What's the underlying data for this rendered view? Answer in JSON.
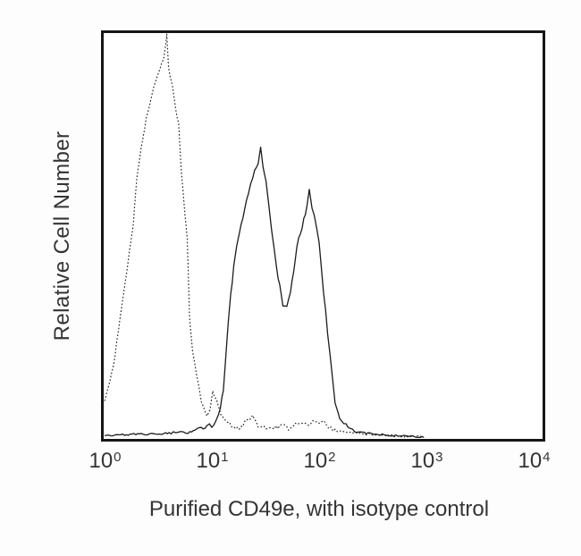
{
  "figure": {
    "background": "#fdfdfd",
    "plot_border_color": "#161616",
    "text_color": "#343434"
  },
  "chart_data": {
    "type": "line",
    "variant": "flow-cytometry-histogram-overlay",
    "title": "",
    "xlabel": "Purified CD49e, with isotype control",
    "ylabel": "Relative Cell Number",
    "x_scale": "log10",
    "x_range": [
      1,
      10000
    ],
    "y_range_percent": [
      0,
      100
    ],
    "y_ticks": "none",
    "grid": false,
    "legend": "none",
    "xticks": [
      {
        "base": "10",
        "exp": "0"
      },
      {
        "base": "10",
        "exp": "1"
      },
      {
        "base": "10",
        "exp": "2"
      },
      {
        "base": "10",
        "exp": "3"
      },
      {
        "base": "10",
        "exp": "4"
      }
    ],
    "series": [
      {
        "name": "Isotype control",
        "line_style": "dotted",
        "color": "#1b1b1b",
        "peak_summary": "single peak at ~3.8 reaching ~100%, low noise tail with bump ~10% near x=10",
        "points_x_value_y_percent": [
          [
            1.0,
            9
          ],
          [
            1.12,
            14
          ],
          [
            1.25,
            20
          ],
          [
            1.4,
            30
          ],
          [
            1.55,
            38
          ],
          [
            1.7,
            46
          ],
          [
            1.85,
            53
          ],
          [
            2.0,
            64
          ],
          [
            2.2,
            72
          ],
          [
            2.45,
            79
          ],
          [
            2.7,
            84
          ],
          [
            3.0,
            89
          ],
          [
            3.3,
            92
          ],
          [
            3.55,
            94
          ],
          [
            3.7,
            97
          ],
          [
            3.8,
            100
          ],
          [
            3.95,
            92
          ],
          [
            4.1,
            90
          ],
          [
            4.3,
            87
          ],
          [
            4.55,
            82
          ],
          [
            4.9,
            78
          ],
          [
            5.2,
            66
          ],
          [
            5.6,
            56
          ],
          [
            5.9,
            49
          ],
          [
            6.2,
            30
          ],
          [
            6.6,
            22
          ],
          [
            7.2,
            15
          ],
          [
            8.0,
            9
          ],
          [
            9.0,
            5
          ],
          [
            9.6,
            7
          ],
          [
            10.2,
            11
          ],
          [
            11.0,
            9
          ],
          [
            11.8,
            7
          ],
          [
            12.6,
            5
          ],
          [
            14,
            3.5
          ],
          [
            16,
            2.5
          ],
          [
            18,
            2
          ],
          [
            21,
            4
          ],
          [
            24,
            5
          ],
          [
            27,
            3
          ],
          [
            32,
            2.5
          ],
          [
            38,
            2
          ],
          [
            45,
            3
          ],
          [
            52,
            2
          ],
          [
            60,
            3
          ],
          [
            70,
            4
          ],
          [
            80,
            3
          ],
          [
            92,
            4
          ],
          [
            105,
            4
          ],
          [
            118,
            3
          ],
          [
            135,
            2
          ],
          [
            155,
            1.5
          ],
          [
            180,
            1.2
          ],
          [
            210,
            1
          ],
          [
            260,
            0.8
          ],
          [
            330,
            0.6
          ],
          [
            420,
            0.4
          ],
          [
            550,
            0.3
          ],
          [
            700,
            0.1
          ],
          [
            900,
            0.1
          ]
        ]
      },
      {
        "name": "Purified CD49e",
        "line_style": "solid",
        "color": "#1b1b1b",
        "peak_summary": "bimodal: peak ~29 at ~70% and peak ~82 at ~60%, valley ~32% near x=45",
        "points_x_value_y_percent": [
          [
            1.0,
            0.4
          ],
          [
            1.6,
            0.6
          ],
          [
            2.2,
            0.8
          ],
          [
            3,
            0.7
          ],
          [
            4,
            1
          ],
          [
            5,
            1.3
          ],
          [
            6,
            1.1
          ],
          [
            7,
            1.6
          ],
          [
            8,
            2.2
          ],
          [
            9,
            2.6
          ],
          [
            10,
            3
          ],
          [
            11,
            4
          ],
          [
            12,
            7
          ],
          [
            12.8,
            12
          ],
          [
            13.5,
            20
          ],
          [
            14.2,
            28
          ],
          [
            15,
            35
          ],
          [
            16,
            42
          ],
          [
            17,
            47
          ],
          [
            18,
            51
          ],
          [
            19.5,
            55
          ],
          [
            21,
            59
          ],
          [
            23,
            63
          ],
          [
            25,
            66
          ],
          [
            27,
            68
          ],
          [
            28.5,
            72
          ],
          [
            30,
            67
          ],
          [
            32,
            64
          ],
          [
            34,
            58
          ],
          [
            36,
            52
          ],
          [
            38,
            47
          ],
          [
            40,
            42
          ],
          [
            43,
            38
          ],
          [
            46,
            33
          ],
          [
            50,
            32
          ],
          [
            54,
            36
          ],
          [
            58,
            41
          ],
          [
            62,
            47
          ],
          [
            67,
            51
          ],
          [
            72,
            54
          ],
          [
            77,
            57
          ],
          [
            81,
            61
          ],
          [
            86,
            57
          ],
          [
            90,
            55
          ],
          [
            95,
            52
          ],
          [
            100,
            48
          ],
          [
            105,
            42
          ],
          [
            110,
            36
          ],
          [
            115,
            31
          ],
          [
            120,
            26
          ],
          [
            127,
            20
          ],
          [
            134,
            14
          ],
          [
            141,
            9
          ],
          [
            150,
            6
          ],
          [
            162,
            4
          ],
          [
            178,
            3
          ],
          [
            195,
            2
          ],
          [
            215,
            1.5
          ],
          [
            245,
            1.2
          ],
          [
            285,
            0.9
          ],
          [
            340,
            0.7
          ],
          [
            420,
            0.5
          ],
          [
            520,
            0.4
          ],
          [
            620,
            0.3
          ],
          [
            750,
            0.1
          ],
          [
            950,
            0.1
          ]
        ]
      }
    ]
  }
}
